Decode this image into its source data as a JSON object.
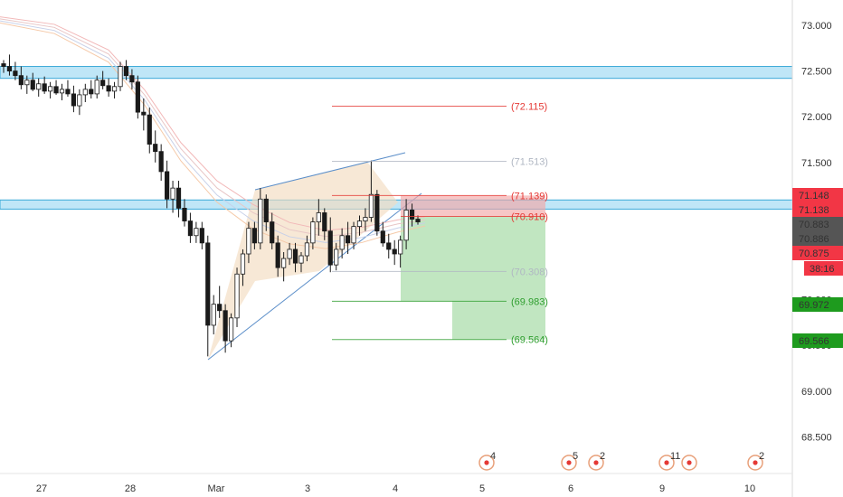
{
  "chart_data": {
    "type": "candlestick",
    "x_labels": [
      "27",
      "28",
      "Mar",
      "3",
      "4",
      "5",
      "6",
      "9",
      "10"
    ],
    "y_ticks": [
      "68.500",
      "69.000",
      "69.500",
      "70.000",
      "70.500",
      "71.000",
      "71.500",
      "72.000",
      "72.500",
      "73.000"
    ],
    "ylim": [
      68.0,
      73.3
    ],
    "zones": [
      {
        "name": "resistance-zone-upper",
        "from": 72.42,
        "to": 72.55
      },
      {
        "name": "resistance-zone-lower",
        "from": 70.99,
        "to": 71.09
      }
    ],
    "levels": [
      {
        "label": "(72.115)",
        "value": 72.115,
        "color": "#e53935"
      },
      {
        "label": "(71.513)",
        "value": 71.513,
        "color": "#b0b7c3"
      },
      {
        "label": "(71.139)",
        "value": 71.139,
        "color": "#e53935"
      },
      {
        "label": "(70.910)",
        "value": 70.91,
        "color": "#e53935"
      },
      {
        "label": "(70.308)",
        "value": 70.308,
        "color": "#b0b7c3"
      },
      {
        "label": "(69.983)",
        "value": 69.983,
        "color": "#2e9e2e"
      },
      {
        "label": "(69.564)",
        "value": 69.564,
        "color": "#2e9e2e"
      }
    ],
    "price_tags": [
      {
        "label": "71.148",
        "value": 71.148,
        "color": "#f23645"
      },
      {
        "label": "71.138",
        "value": 71.138,
        "color": "#f23645"
      },
      {
        "label": "70.883",
        "value": 70.883,
        "color": "#555555"
      },
      {
        "label": "70.886",
        "value": 70.886,
        "color": "#555555"
      },
      {
        "label": "70.875",
        "value": 70.875,
        "color": "#f23645"
      },
      {
        "label": "38:16",
        "value": 70.76,
        "color": "#f23645"
      },
      {
        "label": "69.972",
        "value": 69.972,
        "color": "#1e9b1e"
      },
      {
        "label": "69.566",
        "value": 69.566,
        "color": "#1e9b1e"
      }
    ],
    "events": [
      {
        "x_label": "5",
        "count": "4"
      },
      {
        "x_label": "6",
        "count": "5"
      },
      {
        "x_label": "6",
        "count": "2"
      },
      {
        "x_label": "9",
        "count": "11"
      },
      {
        "x_label": "9",
        "count": ""
      },
      {
        "x_label": "10",
        "count": "2"
      }
    ],
    "candles": [
      [
        72.58,
        72.62,
        72.48,
        72.55
      ],
      [
        72.55,
        72.68,
        72.45,
        72.5
      ],
      [
        72.5,
        72.6,
        72.4,
        72.45
      ],
      [
        72.45,
        72.55,
        72.3,
        72.35
      ],
      [
        72.35,
        72.45,
        72.25,
        72.4
      ],
      [
        72.4,
        72.48,
        72.28,
        72.3
      ],
      [
        72.3,
        72.42,
        72.22,
        72.36
      ],
      [
        72.36,
        72.44,
        72.25,
        72.28
      ],
      [
        72.28,
        72.38,
        72.2,
        72.33
      ],
      [
        72.33,
        72.4,
        72.24,
        72.26
      ],
      [
        72.26,
        72.36,
        72.18,
        72.3
      ],
      [
        72.3,
        72.4,
        72.22,
        72.25
      ],
      [
        72.25,
        72.34,
        72.05,
        72.12
      ],
      [
        72.12,
        72.3,
        72.02,
        72.24
      ],
      [
        72.24,
        72.36,
        72.16,
        72.3
      ],
      [
        72.3,
        72.4,
        72.2,
        72.25
      ],
      [
        72.25,
        72.45,
        72.2,
        72.4
      ],
      [
        72.4,
        72.5,
        72.3,
        72.34
      ],
      [
        72.34,
        72.42,
        72.22,
        72.28
      ],
      [
        72.28,
        72.38,
        72.2,
        72.33
      ],
      [
        72.33,
        72.6,
        72.28,
        72.55
      ],
      [
        72.55,
        72.62,
        72.4,
        72.45
      ],
      [
        72.45,
        72.52,
        72.3,
        72.38
      ],
      [
        72.38,
        72.45,
        71.98,
        72.05
      ],
      [
        72.05,
        72.2,
        71.85,
        72.02
      ],
      [
        72.02,
        72.1,
        71.6,
        71.7
      ],
      [
        71.7,
        71.85,
        71.5,
        71.62
      ],
      [
        71.62,
        71.7,
        71.3,
        71.4
      ],
      [
        71.4,
        71.52,
        71.0,
        71.1
      ],
      [
        71.1,
        71.3,
        70.95,
        71.22
      ],
      [
        71.22,
        71.3,
        70.9,
        71.0
      ],
      [
        71.0,
        71.1,
        70.8,
        70.86
      ],
      [
        70.86,
        70.95,
        70.62,
        70.7
      ],
      [
        70.7,
        70.85,
        70.62,
        70.78
      ],
      [
        70.78,
        70.85,
        70.55,
        70.62
      ],
      [
        70.62,
        70.7,
        69.38,
        69.72
      ],
      [
        69.72,
        70.05,
        69.62,
        69.95
      ],
      [
        69.95,
        70.15,
        69.8,
        69.88
      ],
      [
        69.88,
        69.95,
        69.42,
        69.55
      ],
      [
        69.55,
        69.85,
        69.48,
        69.8
      ],
      [
        69.8,
        70.35,
        69.7,
        70.28
      ],
      [
        70.28,
        70.55,
        70.15,
        70.5
      ],
      [
        70.5,
        70.85,
        70.4,
        70.78
      ],
      [
        70.78,
        70.85,
        70.55,
        70.62
      ],
      [
        70.62,
        71.22,
        70.55,
        71.1
      ],
      [
        71.1,
        71.15,
        70.75,
        70.85
      ],
      [
        70.85,
        70.95,
        70.55,
        70.62
      ],
      [
        70.62,
        70.7,
        70.25,
        70.35
      ],
      [
        70.35,
        70.52,
        70.2,
        70.45
      ],
      [
        70.45,
        70.62,
        70.38,
        70.55
      ],
      [
        70.55,
        70.62,
        70.3,
        70.4
      ],
      [
        70.4,
        70.52,
        70.3,
        70.48
      ],
      [
        70.48,
        70.7,
        70.42,
        70.62
      ],
      [
        70.62,
        70.9,
        70.55,
        70.85
      ],
      [
        70.85,
        71.1,
        70.7,
        70.95
      ],
      [
        70.95,
        71.0,
        70.65,
        70.75
      ],
      [
        70.75,
        70.9,
        70.3,
        70.38
      ],
      [
        70.38,
        70.62,
        70.32,
        70.55
      ],
      [
        70.55,
        70.78,
        70.45,
        70.7
      ],
      [
        70.7,
        70.85,
        70.5,
        70.62
      ],
      [
        70.62,
        70.85,
        70.55,
        70.8
      ],
      [
        70.8,
        70.92,
        70.7,
        70.86
      ],
      [
        70.86,
        71.0,
        70.75,
        70.9
      ],
      [
        70.9,
        71.52,
        70.85,
        71.15
      ],
      [
        71.15,
        71.2,
        70.7,
        70.75
      ],
      [
        70.75,
        70.85,
        70.58,
        70.62
      ],
      [
        70.62,
        70.72,
        70.45,
        70.55
      ],
      [
        70.55,
        70.65,
        70.38,
        70.5
      ],
      [
        70.5,
        70.7,
        70.35,
        70.65
      ],
      [
        70.65,
        71.1,
        70.55,
        70.98
      ],
      [
        70.98,
        71.05,
        70.8,
        70.88
      ],
      [
        70.88,
        70.92,
        70.82,
        70.85
      ]
    ]
  }
}
